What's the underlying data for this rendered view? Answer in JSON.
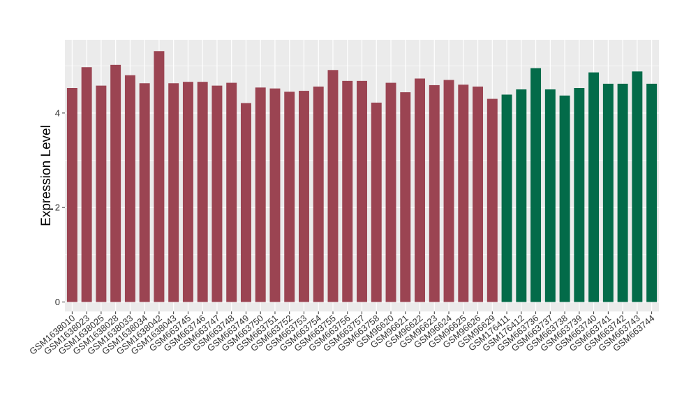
{
  "chart_data": {
    "type": "bar",
    "ylabel": "Expression Level",
    "xlabel": "",
    "ylim": [
      -0.2,
      5.55
    ],
    "yticks": [
      0,
      2,
      4
    ],
    "grid": true,
    "panel_background": "#ebebeb",
    "colors": {
      "group_a": "#9b4452",
      "group_b": "#036b49"
    },
    "categories": [
      "GSM1638010",
      "GSM1638023",
      "GSM1638025",
      "GSM1638028",
      "GSM1638033",
      "GSM1638034",
      "GSM1638042",
      "GSM1638043",
      "GSM663745",
      "GSM663746",
      "GSM663747",
      "GSM663748",
      "GSM663749",
      "GSM663750",
      "GSM663751",
      "GSM663752",
      "GSM663753",
      "GSM663754",
      "GSM663755",
      "GSM663756",
      "GSM663757",
      "GSM663758",
      "GSM96620",
      "GSM96621",
      "GSM96622",
      "GSM96623",
      "GSM96624",
      "GSM96625",
      "GSM96626",
      "GSM96629",
      "GSM176411",
      "GSM176412",
      "GSM663736",
      "GSM663737",
      "GSM663738",
      "GSM663739",
      "GSM663740",
      "GSM663741",
      "GSM663742",
      "GSM663743",
      "GSM663744"
    ],
    "values": [
      4.53,
      4.97,
      4.58,
      5.02,
      4.8,
      4.63,
      5.31,
      4.63,
      4.66,
      4.66,
      4.58,
      4.64,
      4.21,
      4.54,
      4.52,
      4.45,
      4.47,
      4.56,
      4.91,
      4.68,
      4.68,
      4.22,
      4.64,
      4.44,
      4.73,
      4.59,
      4.7,
      4.6,
      4.56,
      4.3,
      4.39,
      4.5,
      4.95,
      4.5,
      4.37,
      4.53,
      4.86,
      4.62,
      4.62,
      4.88,
      4.62
    ],
    "groups": [
      "a",
      "a",
      "a",
      "a",
      "a",
      "a",
      "a",
      "a",
      "a",
      "a",
      "a",
      "a",
      "a",
      "a",
      "a",
      "a",
      "a",
      "a",
      "a",
      "a",
      "a",
      "a",
      "a",
      "a",
      "a",
      "a",
      "a",
      "a",
      "a",
      "a",
      "b",
      "b",
      "b",
      "b",
      "b",
      "b",
      "b",
      "b",
      "b",
      "b",
      "b"
    ]
  }
}
